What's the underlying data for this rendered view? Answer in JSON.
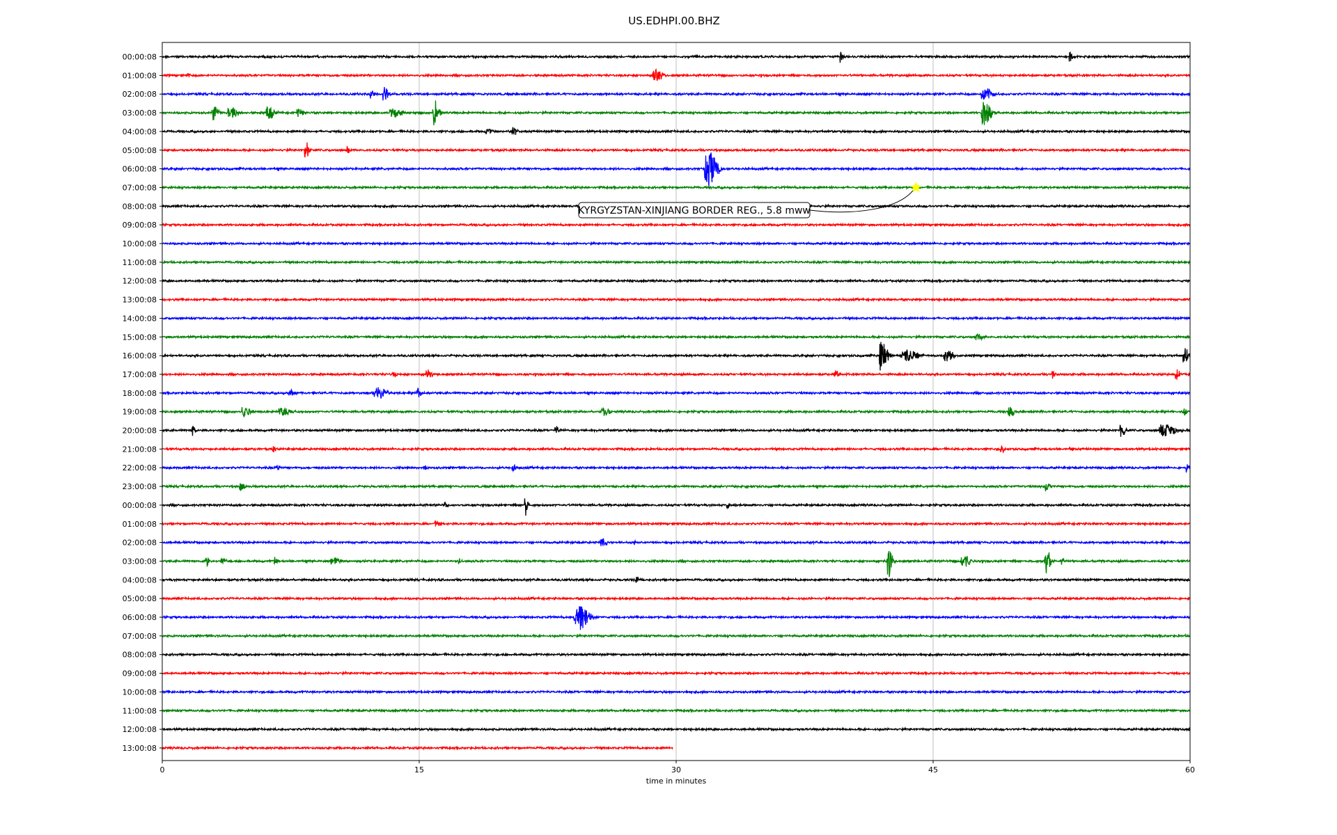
{
  "chart_data": {
    "type": "line",
    "title": "US.EDHPI.00.BHZ",
    "xlabel": "time in minutes",
    "ylabel": "",
    "xlim": [
      0,
      60
    ],
    "x_ticks": [
      "0",
      "15",
      "30",
      "45",
      "60"
    ],
    "x_tick_values": [
      0,
      15,
      30,
      45,
      60
    ],
    "grid_x": true,
    "grid_y": false,
    "trace_colors": [
      "#000000",
      "#ff0000",
      "#0000ff",
      "#008000"
    ],
    "rows": [
      {
        "label": "00:00:08",
        "end_minute": 60,
        "events": [
          {
            "t": 39.6,
            "a": 0.9,
            "w": 0.15
          },
          {
            "t": 53.0,
            "a": 0.7,
            "w": 0.2
          }
        ]
      },
      {
        "label": "01:00:08",
        "end_minute": 60,
        "events": [
          {
            "t": 1.5,
            "a": 0.4,
            "w": 0.2
          },
          {
            "t": 28.8,
            "a": 0.8,
            "w": 0.6
          }
        ]
      },
      {
        "label": "02:00:08",
        "end_minute": 60,
        "events": [
          {
            "t": 12.2,
            "a": 0.8,
            "w": 0.3
          },
          {
            "t": 13.0,
            "a": 0.9,
            "w": 0.4
          },
          {
            "t": 48.0,
            "a": 0.9,
            "w": 0.7
          }
        ]
      },
      {
        "label": "03:00:08",
        "end_minute": 60,
        "events": [
          {
            "t": 3.0,
            "a": 1.0,
            "w": 0.4
          },
          {
            "t": 4.0,
            "a": 0.8,
            "w": 0.6
          },
          {
            "t": 6.2,
            "a": 0.9,
            "w": 0.5
          },
          {
            "t": 8.0,
            "a": 0.5,
            "w": 0.5
          },
          {
            "t": 13.5,
            "a": 0.6,
            "w": 0.8
          },
          {
            "t": 15.9,
            "a": 1.8,
            "w": 0.4
          },
          {
            "t": 48.0,
            "a": 1.6,
            "w": 0.6
          }
        ]
      },
      {
        "label": "04:00:08",
        "end_minute": 60,
        "events": [
          {
            "t": 19.0,
            "a": 0.4,
            "w": 0.4
          },
          {
            "t": 20.5,
            "a": 0.6,
            "w": 0.3
          }
        ]
      },
      {
        "label": "05:00:08",
        "end_minute": 60,
        "events": [
          {
            "t": 8.4,
            "a": 1.2,
            "w": 0.3
          },
          {
            "t": 10.8,
            "a": 0.5,
            "w": 0.2
          }
        ]
      },
      {
        "label": "06:00:08",
        "end_minute": 60,
        "events": [
          {
            "t": 31.9,
            "a": 2.2,
            "w": 0.8
          }
        ]
      },
      {
        "label": "07:00:08",
        "end_minute": 60,
        "events": []
      },
      {
        "label": "08:00:08",
        "end_minute": 60,
        "events": []
      },
      {
        "label": "09:00:08",
        "end_minute": 60,
        "events": []
      },
      {
        "label": "10:00:08",
        "end_minute": 60,
        "events": []
      },
      {
        "label": "11:00:08",
        "end_minute": 60,
        "events": []
      },
      {
        "label": "12:00:08",
        "end_minute": 60,
        "events": []
      },
      {
        "label": "13:00:08",
        "end_minute": 60,
        "events": []
      },
      {
        "label": "14:00:08",
        "end_minute": 60,
        "events": []
      },
      {
        "label": "15:00:08",
        "end_minute": 60,
        "events": [
          {
            "t": 47.6,
            "a": 0.5,
            "w": 0.4
          }
        ]
      },
      {
        "label": "16:00:08",
        "end_minute": 60,
        "events": [
          {
            "t": 42.0,
            "a": 2.2,
            "w": 0.5
          },
          {
            "t": 43.5,
            "a": 0.8,
            "w": 1.0
          },
          {
            "t": 45.8,
            "a": 0.8,
            "w": 0.6
          },
          {
            "t": 59.7,
            "a": 1.0,
            "w": 0.4
          }
        ]
      },
      {
        "label": "17:00:08",
        "end_minute": 60,
        "events": [
          {
            "t": 13.5,
            "a": 0.4,
            "w": 0.3
          },
          {
            "t": 15.5,
            "a": 0.7,
            "w": 0.4
          },
          {
            "t": 39.3,
            "a": 0.5,
            "w": 0.3
          },
          {
            "t": 52.0,
            "a": 0.6,
            "w": 0.2
          },
          {
            "t": 59.2,
            "a": 0.7,
            "w": 0.3
          }
        ]
      },
      {
        "label": "18:00:08",
        "end_minute": 60,
        "events": [
          {
            "t": 7.5,
            "a": 0.5,
            "w": 0.4
          },
          {
            "t": 12.6,
            "a": 0.8,
            "w": 0.8
          },
          {
            "t": 14.9,
            "a": 0.7,
            "w": 0.3
          }
        ]
      },
      {
        "label": "19:00:08",
        "end_minute": 60,
        "events": [
          {
            "t": 4.8,
            "a": 0.7,
            "w": 0.5
          },
          {
            "t": 7.0,
            "a": 0.6,
            "w": 0.8
          },
          {
            "t": 25.8,
            "a": 0.6,
            "w": 0.5
          },
          {
            "t": 49.5,
            "a": 0.6,
            "w": 0.4
          },
          {
            "t": 59.7,
            "a": 0.5,
            "w": 0.3
          }
        ]
      },
      {
        "label": "20:00:08",
        "end_minute": 60,
        "events": [
          {
            "t": 1.8,
            "a": 0.6,
            "w": 0.2
          },
          {
            "t": 23.0,
            "a": 0.5,
            "w": 0.3
          },
          {
            "t": 56.0,
            "a": 0.9,
            "w": 0.3
          },
          {
            "t": 58.5,
            "a": 0.8,
            "w": 1.0
          }
        ]
      },
      {
        "label": "21:00:08",
        "end_minute": 60,
        "events": [
          {
            "t": 6.5,
            "a": 0.6,
            "w": 0.2
          },
          {
            "t": 49.0,
            "a": 0.6,
            "w": 0.2
          },
          {
            "t": 53.0,
            "a": 0.4,
            "w": 0.2
          }
        ]
      },
      {
        "label": "22:00:08",
        "end_minute": 60,
        "events": [
          {
            "t": 6.7,
            "a": 0.4,
            "w": 0.2
          },
          {
            "t": 15.3,
            "a": 0.4,
            "w": 0.2
          },
          {
            "t": 20.5,
            "a": 0.5,
            "w": 0.3
          },
          {
            "t": 59.8,
            "a": 0.7,
            "w": 0.2
          }
        ]
      },
      {
        "label": "23:00:08",
        "end_minute": 60,
        "events": [
          {
            "t": 4.6,
            "a": 0.5,
            "w": 0.3
          },
          {
            "t": 51.6,
            "a": 0.8,
            "w": 0.3
          }
        ]
      },
      {
        "label": "00:00:08",
        "end_minute": 60,
        "events": [
          {
            "t": 16.5,
            "a": 0.4,
            "w": 0.3
          },
          {
            "t": 21.2,
            "a": 1.7,
            "w": 0.2
          },
          {
            "t": 33.0,
            "a": 0.5,
            "w": 0.2
          }
        ]
      },
      {
        "label": "01:00:08",
        "end_minute": 60,
        "events": [
          {
            "t": 16.0,
            "a": 0.5,
            "w": 0.3
          }
        ]
      },
      {
        "label": "02:00:08",
        "end_minute": 60,
        "events": [
          {
            "t": 25.7,
            "a": 0.6,
            "w": 0.4
          },
          {
            "t": 27.5,
            "a": 0.3,
            "w": 0.2
          }
        ]
      },
      {
        "label": "03:00:08",
        "end_minute": 60,
        "events": [
          {
            "t": 2.6,
            "a": 0.8,
            "w": 0.2
          },
          {
            "t": 3.5,
            "a": 0.4,
            "w": 0.3
          },
          {
            "t": 6.6,
            "a": 0.5,
            "w": 0.2
          },
          {
            "t": 10.0,
            "a": 0.5,
            "w": 0.6
          },
          {
            "t": 17.3,
            "a": 0.4,
            "w": 0.2
          },
          {
            "t": 42.4,
            "a": 2.3,
            "w": 0.3
          },
          {
            "t": 46.8,
            "a": 0.8,
            "w": 0.6
          },
          {
            "t": 51.6,
            "a": 1.6,
            "w": 0.4
          },
          {
            "t": 52.5,
            "a": 0.5,
            "w": 0.2
          }
        ]
      },
      {
        "label": "04:00:08",
        "end_minute": 60,
        "events": [
          {
            "t": 27.7,
            "a": 0.5,
            "w": 0.2
          }
        ]
      },
      {
        "label": "05:00:08",
        "end_minute": 60,
        "events": []
      },
      {
        "label": "06:00:08",
        "end_minute": 60,
        "events": [
          {
            "t": 24.3,
            "a": 1.8,
            "w": 0.9
          }
        ]
      },
      {
        "label": "07:00:08",
        "end_minute": 60,
        "events": []
      },
      {
        "label": "08:00:08",
        "end_minute": 60,
        "events": []
      },
      {
        "label": "09:00:08",
        "end_minute": 60,
        "events": []
      },
      {
        "label": "10:00:08",
        "end_minute": 60,
        "events": []
      },
      {
        "label": "11:00:08",
        "end_minute": 60,
        "events": []
      },
      {
        "label": "12:00:08",
        "end_minute": 60,
        "events": []
      },
      {
        "label": "13:00:08",
        "end_minute": 29.8,
        "events": []
      }
    ],
    "annotation": {
      "text": "KYRGYZSTAN-XINJIANG BORDER REG., 5.8 mww",
      "event_row": 7,
      "event_minute": 44.0,
      "marker_color": "#ffff00"
    }
  }
}
